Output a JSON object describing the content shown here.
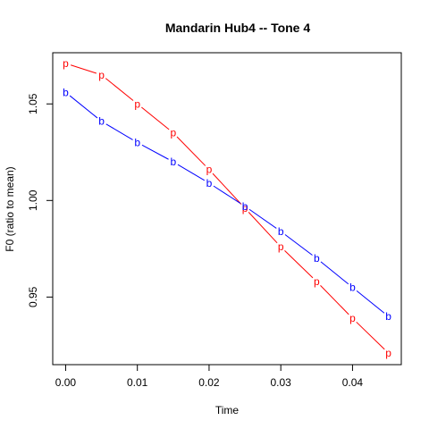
{
  "chart_data": {
    "type": "line",
    "title": "Mandarin Hub4 -- Tone 4",
    "xlabel": "Time",
    "ylabel": "F0 (ratio to mean)",
    "xlim": [
      -0.0018,
      0.0468
    ],
    "ylim": [
      0.915,
      1.0765
    ],
    "x_ticks": [
      "0.00",
      "0.01",
      "0.02",
      "0.03",
      "0.04"
    ],
    "y_ticks": [
      "0.95",
      "1.00",
      "1.05"
    ],
    "x": [
      0.0,
      0.005,
      0.01,
      0.015,
      0.02,
      0.025,
      0.03,
      0.035,
      0.04,
      0.045
    ],
    "series": [
      {
        "symbol": "p",
        "color": "#ff0000",
        "values": [
          1.071,
          1.065,
          1.05,
          1.035,
          1.016,
          0.996,
          0.976,
          0.958,
          0.939,
          0.921
        ]
      },
      {
        "symbol": "b",
        "color": "#0000ff",
        "values": [
          1.056,
          1.041,
          1.03,
          1.02,
          1.009,
          0.997,
          0.984,
          0.97,
          0.955,
          0.94
        ]
      }
    ],
    "grid": false,
    "legend": "none"
  }
}
